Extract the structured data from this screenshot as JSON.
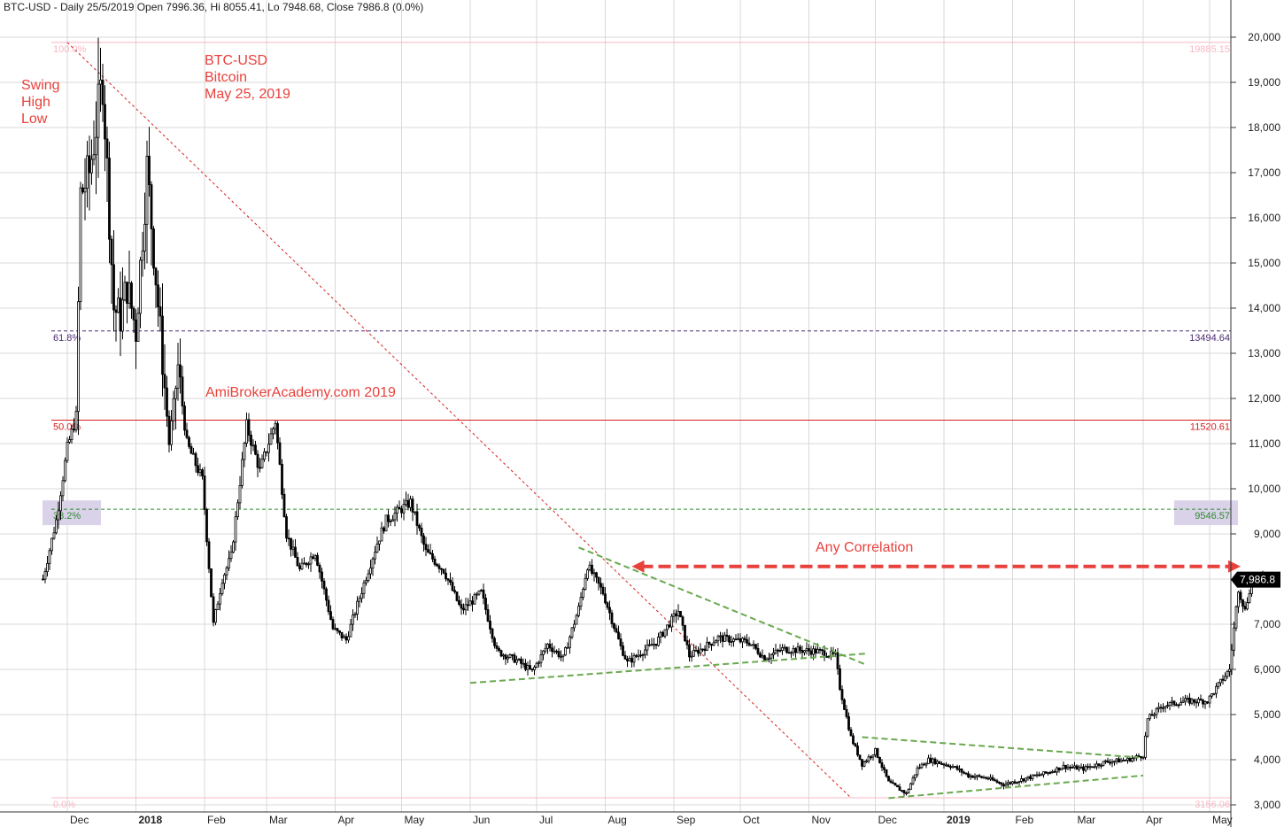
{
  "header": "BTC-USD - Daily 25/5/2019 Open 7996.36, Hi 8055.41, Lo 7948.68, Close 7986.8 (0.0%)",
  "annotations": {
    "swing": [
      "Swing",
      "High",
      "Low"
    ],
    "title": [
      "BTC-USD",
      "Bitcoin",
      "May 25, 2019"
    ],
    "watermark": "AmiBrokerAcademy.com  2019",
    "correlation": "Any Correlation"
  },
  "colors": {
    "candle": "#000000",
    "annotation": "#e8413c",
    "fib_100": "#f6b8c4",
    "fib_618": "#4b2b74",
    "fib_50": "#d82020",
    "fib_382": "#2e8b2e",
    "trend": "#6aa84f",
    "grid": "#d9d9d9"
  },
  "chart_data": {
    "type": "candlestick",
    "symbol": "BTC-USD",
    "timeframe": "Daily",
    "ylim": [
      3000,
      20500
    ],
    "y_ticks": [
      "3,000",
      "4,000",
      "5,000",
      "6,000",
      "7,000",
      "8,000",
      "9,000",
      "10,000",
      "11,000",
      "12,000",
      "13,000",
      "14,000",
      "15,000",
      "16,000",
      "17,000",
      "18,000",
      "19,000",
      "20,000"
    ],
    "x_ticks": [
      "Dec",
      "2018",
      "Feb",
      "Mar",
      "Apr",
      "May",
      "Jun",
      "Jul",
      "Aug",
      "Sep",
      "Oct",
      "Nov",
      "Dec",
      "2019",
      "Feb",
      "Mar",
      "Apr",
      "May"
    ],
    "last_close": "7,986.8",
    "fib_levels": [
      {
        "pct": "100.0%",
        "value": "19885.15",
        "price": 19885.15
      },
      {
        "pct": "61.8%",
        "value": "13494.64",
        "price": 13494.64
      },
      {
        "pct": "50.0%",
        "value": "11520.61",
        "price": 11520.61
      },
      {
        "pct": "38.2%",
        "value": "9546.57",
        "price": 9546.57
      },
      {
        "pct": "0.0%",
        "value": "3156.06",
        "price": 3156.06
      }
    ],
    "close_path": [
      [
        "2017-11-20",
        8000
      ],
      [
        "2017-11-26",
        9300
      ],
      [
        "2017-12-01",
        10900
      ],
      [
        "2017-12-05",
        11600
      ],
      [
        "2017-12-07",
        16500
      ],
      [
        "2017-12-11",
        17000
      ],
      [
        "2017-12-17",
        19100
      ],
      [
        "2017-12-22",
        14000
      ],
      [
        "2017-12-25",
        13800
      ],
      [
        "2017-12-28",
        14500
      ],
      [
        "2018-01-01",
        13500
      ],
      [
        "2018-01-06",
        17100
      ],
      [
        "2018-01-10",
        14700
      ],
      [
        "2018-01-16",
        11000
      ],
      [
        "2018-01-20",
        12700
      ],
      [
        "2018-01-24",
        11000
      ],
      [
        "2018-01-31",
        10200
      ],
      [
        "2018-02-05",
        7000
      ],
      [
        "2018-02-09",
        8000
      ],
      [
        "2018-02-13",
        8500
      ],
      [
        "2018-02-20",
        11400
      ],
      [
        "2018-02-26",
        10400
      ],
      [
        "2018-03-05",
        11500
      ],
      [
        "2018-03-10",
        9000
      ],
      [
        "2018-03-16",
        8200
      ],
      [
        "2018-03-23",
        8600
      ],
      [
        "2018-03-31",
        6900
      ],
      [
        "2018-04-06",
        6650
      ],
      [
        "2018-04-14",
        7900
      ],
      [
        "2018-04-20",
        8800
      ],
      [
        "2018-04-24",
        9300
      ],
      [
        "2018-05-05",
        9700
      ],
      [
        "2018-05-12",
        8600
      ],
      [
        "2018-05-20",
        8200
      ],
      [
        "2018-05-28",
        7300
      ],
      [
        "2018-06-06",
        7700
      ],
      [
        "2018-06-13",
        6400
      ],
      [
        "2018-06-22",
        6200
      ],
      [
        "2018-06-29",
        5950
      ],
      [
        "2018-07-06",
        6550
      ],
      [
        "2018-07-13",
        6250
      ],
      [
        "2018-07-20",
        7350
      ],
      [
        "2018-07-24",
        8300
      ],
      [
        "2018-07-31",
        7700
      ],
      [
        "2018-08-08",
        6500
      ],
      [
        "2018-08-11",
        6150
      ],
      [
        "2018-08-18",
        6400
      ],
      [
        "2018-08-24",
        6600
      ],
      [
        "2018-09-03",
        7300
      ],
      [
        "2018-09-08",
        6300
      ],
      [
        "2018-09-15",
        6500
      ],
      [
        "2018-09-21",
        6700
      ],
      [
        "2018-10-05",
        6600
      ],
      [
        "2018-10-12",
        6250
      ],
      [
        "2018-10-20",
        6450
      ],
      [
        "2018-11-05",
        6400
      ],
      [
        "2018-11-13",
        6300
      ],
      [
        "2018-11-15",
        5600
      ],
      [
        "2018-11-20",
        4500
      ],
      [
        "2018-11-25",
        3900
      ],
      [
        "2018-12-01",
        4200
      ],
      [
        "2018-12-07",
        3500
      ],
      [
        "2018-12-15",
        3250
      ],
      [
        "2018-12-20",
        3800
      ],
      [
        "2018-12-25",
        4000
      ],
      [
        "2019-01-05",
        3850
      ],
      [
        "2019-01-12",
        3650
      ],
      [
        "2019-01-20",
        3600
      ],
      [
        "2019-01-28",
        3450
      ],
      [
        "2019-02-08",
        3600
      ],
      [
        "2019-02-16",
        3700
      ],
      [
        "2019-02-24",
        3850
      ],
      [
        "2019-03-05",
        3800
      ],
      [
        "2019-03-15",
        3950
      ],
      [
        "2019-03-25",
        4000
      ],
      [
        "2019-04-01",
        4100
      ],
      [
        "2019-04-03",
        4900
      ],
      [
        "2019-04-10",
        5200
      ],
      [
        "2019-04-20",
        5300
      ],
      [
        "2019-04-30",
        5300
      ],
      [
        "2019-05-10",
        6000
      ],
      [
        "2019-05-14",
        7800
      ],
      [
        "2019-05-17",
        7300
      ],
      [
        "2019-05-20",
        8000
      ],
      [
        "2019-05-25",
        7986.8
      ]
    ],
    "diagonal_line": [
      [
        "2017-12-01",
        19885.15
      ],
      [
        "2018-11-20",
        3156.06
      ]
    ],
    "trendlines": [
      {
        "from": [
          "2018-07-20",
          8700
        ],
        "to": [
          "2018-11-27",
          6100
        ]
      },
      {
        "from": [
          "2018-06-01",
          5700
        ],
        "to": [
          "2018-11-27",
          6350
        ]
      },
      {
        "from": [
          "2018-11-25",
          4500
        ],
        "to": [
          "2019-03-30",
          4050
        ]
      },
      {
        "from": [
          "2018-12-07",
          3150
        ],
        "to": [
          "2019-04-01",
          3650
        ]
      }
    ],
    "arrow": {
      "from": [
        "2018-08-13",
        8280
      ],
      "to": [
        "2019-05-15",
        8280
      ]
    }
  }
}
